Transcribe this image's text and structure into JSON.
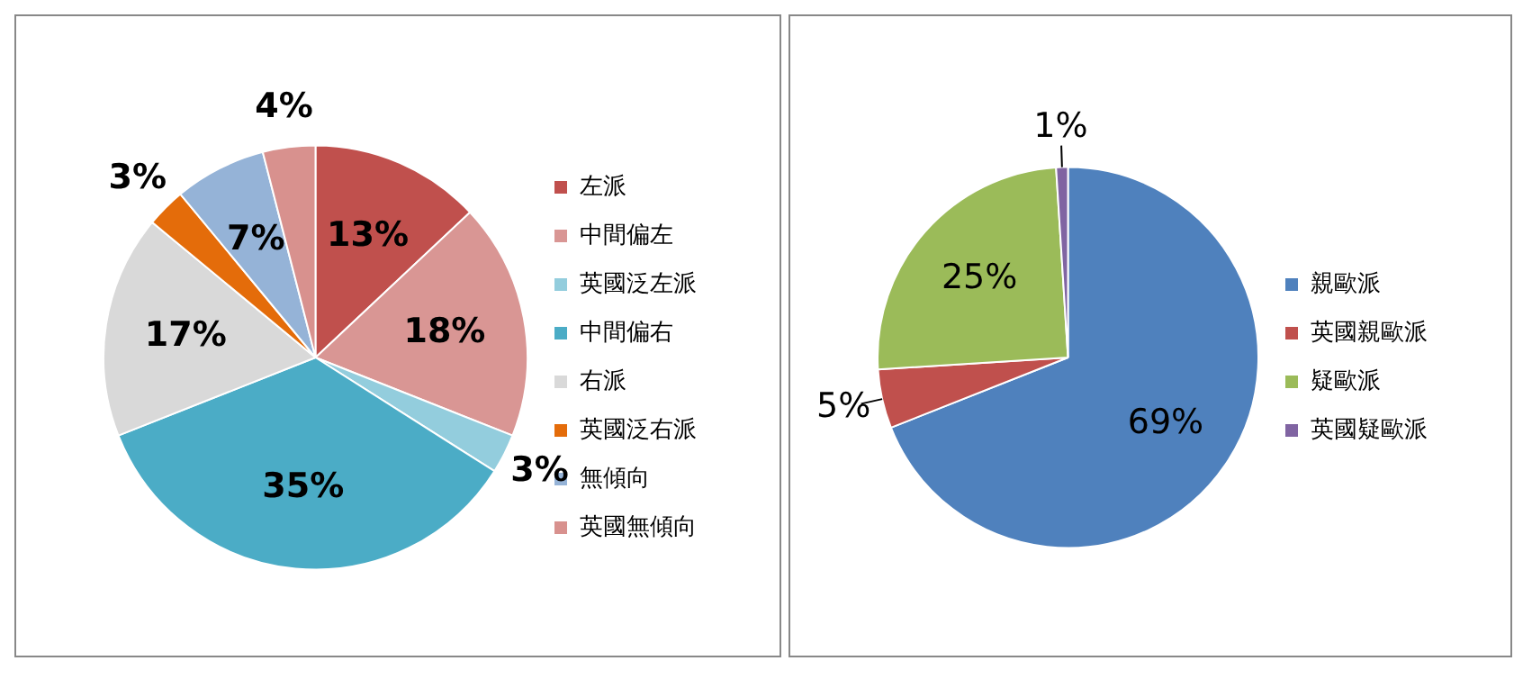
{
  "chart_data": [
    {
      "type": "pie",
      "categories": [
        "左派",
        "中間偏左",
        "英國泛左派",
        "中間偏右",
        "右派",
        "英國泛右派",
        "無傾向",
        "英國無傾向"
      ],
      "values": [
        13,
        18,
        3,
        35,
        17,
        3,
        7,
        4
      ],
      "colors": [
        "#c0504d",
        "#d99694",
        "#93cddd",
        "#4bacc6",
        "#d9d9d9",
        "#e46c0a",
        "#95b3d7",
        "#d8918e"
      ],
      "value_labels": [
        "13%",
        "18%",
        "3%",
        "35%",
        "17%",
        "3%",
        "7%",
        "4%"
      ],
      "legend": "right"
    },
    {
      "type": "pie",
      "categories": [
        "親歐派",
        "英國親歐派",
        "疑歐派",
        "英國疑歐派"
      ],
      "values": [
        69,
        5,
        25,
        1
      ],
      "colors": [
        "#4f81bd",
        "#c0504d",
        "#9bbb59",
        "#8064a2"
      ],
      "value_labels": [
        "69%",
        "5%",
        "25%",
        "1%"
      ],
      "legend": "right"
    }
  ]
}
